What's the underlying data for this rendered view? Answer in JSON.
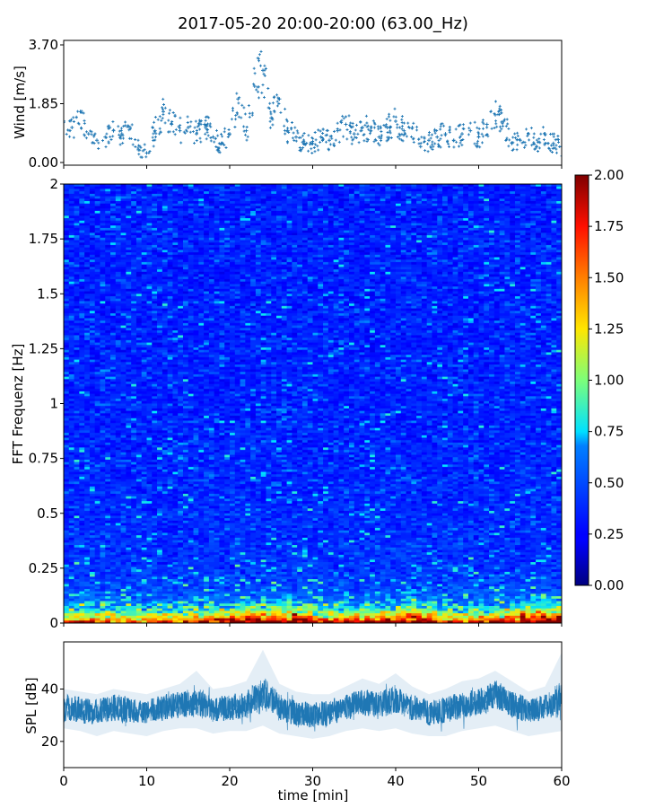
{
  "title": "2017-05-20 20:00-20:00 (63.00_Hz)",
  "chart_data": [
    {
      "type": "scatter",
      "ylabel": "Wind [m/s]",
      "xlim": [
        0,
        60
      ],
      "ylim": [
        0,
        3.7
      ],
      "yticks": [
        "0.00",
        "1.85",
        "3.70"
      ],
      "marker": "+",
      "color": "#1f77b4",
      "x": [
        0,
        1,
        2,
        3,
        4,
        5,
        6,
        7,
        8,
        9,
        10,
        11,
        12,
        13,
        14,
        15,
        16,
        17,
        18,
        19,
        20,
        21,
        22,
        23,
        24,
        25,
        26,
        27,
        28,
        29,
        30,
        31,
        32,
        33,
        34,
        35,
        36,
        37,
        38,
        39,
        40,
        41,
        42,
        43,
        44,
        45,
        46,
        47,
        48,
        49,
        50,
        51,
        52,
        53,
        54,
        55,
        56,
        57,
        58,
        59,
        60
      ],
      "values": [
        1.3,
        1.1,
        1.6,
        0.9,
        0.7,
        0.8,
        1.0,
        0.9,
        1.1,
        0.4,
        0.3,
        1.0,
        1.6,
        1.2,
        1.0,
        1.1,
        0.9,
        1.2,
        0.8,
        0.6,
        0.9,
        2.0,
        1.0,
        2.4,
        2.9,
        1.4,
        2.0,
        1.0,
        0.8,
        0.6,
        0.6,
        0.8,
        0.7,
        1.0,
        1.2,
        0.9,
        1.1,
        1.0,
        0.8,
        1.1,
        1.3,
        1.0,
        1.1,
        0.5,
        0.7,
        0.8,
        0.9,
        0.7,
        0.9,
        1.0,
        0.8,
        1.2,
        1.5,
        1.3,
        0.6,
        0.7,
        0.9,
        0.5,
        0.9,
        0.6,
        0.5
      ]
    },
    {
      "type": "heatmap",
      "ylabel": "FFT Frequenz [Hz]",
      "xlim": [
        0,
        60
      ],
      "ylim": [
        0,
        2
      ],
      "yticks": [
        "0",
        "0.25",
        "0.5",
        "0.75",
        "1",
        "1.25",
        "1.5",
        "1.75",
        "2"
      ],
      "colormap": "jet",
      "colorbar": {
        "range": [
          0,
          2
        ],
        "ticks": [
          "0.00",
          "0.25",
          "0.50",
          "0.75",
          "1.00",
          "1.25",
          "1.50",
          "1.75",
          "2.00"
        ]
      },
      "time_segments": [
        0,
        5,
        10,
        15,
        20,
        25,
        30,
        35,
        40,
        45,
        50,
        55
      ],
      "low_frequency_peak": [
        1.4,
        1.2,
        1.3,
        1.6,
        1.9,
        2.0,
        1.5,
        1.6,
        1.8,
        1.3,
        1.5,
        2.0
      ]
    },
    {
      "type": "area",
      "ylabel": "SPL [dB]",
      "xlabel": "time [min]",
      "xlim": [
        0,
        60
      ],
      "ylim": [
        10,
        58
      ],
      "xticks": [
        "0",
        "10",
        "20",
        "30",
        "40",
        "50",
        "60"
      ],
      "yticks": [
        "20",
        "40"
      ],
      "color": "#1f77b4",
      "x": [
        0,
        2,
        4,
        6,
        8,
        10,
        12,
        14,
        16,
        18,
        20,
        22,
        24,
        26,
        28,
        30,
        32,
        34,
        36,
        38,
        40,
        42,
        44,
        46,
        48,
        50,
        52,
        54,
        56,
        58,
        60
      ],
      "mean": [
        33,
        32,
        31,
        33,
        32,
        31,
        33,
        34,
        35,
        32,
        33,
        34,
        38,
        33,
        31,
        30,
        31,
        33,
        35,
        34,
        36,
        33,
        31,
        32,
        34,
        35,
        38,
        34,
        32,
        33,
        36
      ],
      "upper": [
        40,
        39,
        38,
        40,
        39,
        38,
        40,
        42,
        47,
        40,
        41,
        43,
        55,
        42,
        39,
        38,
        38,
        41,
        44,
        42,
        46,
        41,
        38,
        40,
        43,
        44,
        47,
        43,
        39,
        41,
        54
      ],
      "lower": [
        25,
        24,
        22,
        24,
        23,
        22,
        24,
        25,
        25,
        23,
        24,
        24,
        26,
        23,
        22,
        21,
        22,
        24,
        25,
        24,
        25,
        23,
        22,
        22,
        24,
        25,
        26,
        24,
        22,
        23,
        24
      ]
    }
  ]
}
